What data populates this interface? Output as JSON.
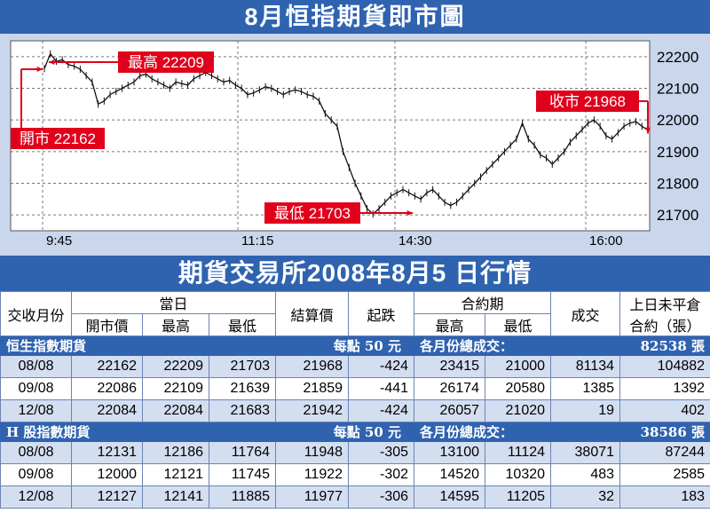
{
  "title": "8月恒指期貨即市圖",
  "table_title": "期貨交易所2008年8月5 日行情",
  "colors": {
    "banner": "#2f63b0",
    "chart_bg": "#c9d6ec",
    "annotation": "#e0001b",
    "row_alt": "#d3def0"
  },
  "chart_data": {
    "type": "line",
    "title": "8月恒指期貨即市圖",
    "xlabel": "",
    "ylabel": "",
    "x_ticks": [
      "9:45",
      "11:15",
      "14:30",
      "16:00"
    ],
    "y_ticks": [
      21700,
      21800,
      21900,
      22000,
      22100,
      22200
    ],
    "ylim": [
      21650,
      22250
    ],
    "grid": true,
    "series": [
      {
        "values": [
          22162,
          22209,
          22185,
          22190,
          22175,
          22170,
          22160,
          22140,
          22120,
          22050,
          22060,
          22080,
          22090,
          22100,
          22110,
          22120,
          22140,
          22145,
          22130,
          22120,
          22110,
          22100,
          22120,
          22115,
          22110,
          22130,
          22140,
          22150,
          22140,
          22130,
          22120,
          22125,
          22110,
          22100,
          22080,
          22085,
          22095,
          22105,
          22100,
          22090,
          22080,
          22090,
          22095,
          22090,
          22080,
          22075,
          22060,
          22020,
          22000,
          21980,
          21900,
          21850,
          21800,
          21760,
          21720,
          21703,
          21720,
          21740,
          21760,
          21770,
          21780,
          21770,
          21760,
          21750,
          21770,
          21780,
          21760,
          21740,
          21730,
          21740,
          21760,
          21780,
          21800,
          21820,
          21840,
          21860,
          21880,
          21900,
          21920,
          21940,
          21990,
          21940,
          21920,
          21890,
          21880,
          21860,
          21880,
          21900,
          21930,
          21950,
          21970,
          21990,
          22000,
          21980,
          21950,
          21940,
          21960,
          21980,
          21990,
          21995,
          21980,
          21968
        ]
      }
    ],
    "annotations": [
      {
        "label": "最高 22209",
        "value": 22209
      },
      {
        "label": "開市 22162",
        "value": 22162
      },
      {
        "label": "收市 21968",
        "value": 21968
      },
      {
        "label": "最低 21703",
        "value": 21703
      }
    ]
  },
  "table": {
    "headers": {
      "month": "交收月份",
      "today": "當日",
      "open": "開市價",
      "high": "最高",
      "low": "最低",
      "settle": "結算價",
      "change": "起跌",
      "contract": "合約期",
      "c_high": "最高",
      "c_low": "最低",
      "volume": "成交",
      "oi": "上日未平倉合約（張）"
    },
    "sections": [
      {
        "name": "恒生指數期貨",
        "unit": "每點 50 元",
        "total_label": "各月份總成交：",
        "total": "82538 張",
        "rows": [
          [
            "08/08",
            "22162",
            "22209",
            "21703",
            "21968",
            "-424",
            "23415",
            "21000",
            "81134",
            "104882"
          ],
          [
            "09/08",
            "22086",
            "22109",
            "21639",
            "21859",
            "-441",
            "26174",
            "20580",
            "1385",
            "1392"
          ],
          [
            "12/08",
            "22084",
            "22084",
            "21683",
            "21942",
            "-424",
            "26057",
            "21020",
            "19",
            "402"
          ]
        ]
      },
      {
        "name": "H 股指數期貨",
        "unit": "每點 50 元",
        "total_label": "各月份總成交：",
        "total": "38586 張",
        "rows": [
          [
            "08/08",
            "12131",
            "12186",
            "11764",
            "11948",
            "-305",
            "13100",
            "11124",
            "38071",
            "87244"
          ],
          [
            "09/08",
            "12000",
            "12121",
            "11745",
            "11922",
            "-302",
            "14520",
            "10320",
            "483",
            "2585"
          ],
          [
            "12/08",
            "12127",
            "12141",
            "11885",
            "11977",
            "-306",
            "14595",
            "11205",
            "32",
            "183"
          ]
        ]
      }
    ]
  }
}
